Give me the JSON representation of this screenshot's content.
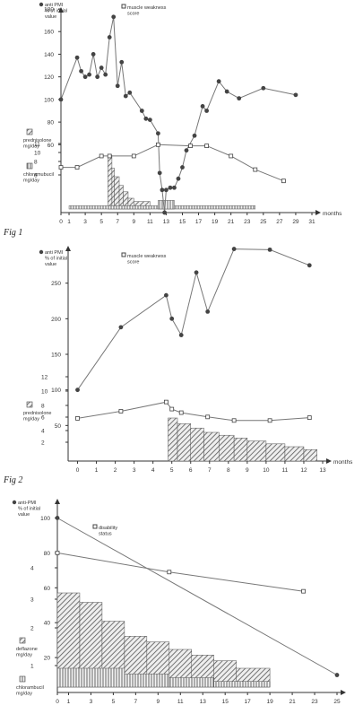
{
  "colors": {
    "ink": "#333333",
    "line": "#777777",
    "hatch": "#555555",
    "marker_fill": "#444444"
  },
  "chart_data": [
    {
      "type": "line",
      "caption": "Fig 1",
      "xlabel": "months",
      "xlim": [
        0,
        31
      ],
      "x_ticks": [
        0,
        1,
        3,
        5,
        7,
        9,
        11,
        13,
        15,
        17,
        19,
        21,
        23,
        25,
        27,
        29,
        31
      ],
      "y_left_label": "anti PMI\n% of initial\nvalue",
      "y_left_ticks": [
        60,
        80,
        100,
        120,
        140,
        160,
        180
      ],
      "ylim": [
        0,
        180
      ],
      "y_right_label": "muscle weakness\nscore",
      "y_right_ticks": [
        6,
        8,
        10,
        11
      ],
      "legend_bar_labels": [
        "prednisolone\nmg/day",
        "chloramubucil\nmg/day"
      ],
      "series": [
        {
          "name": "anti PMI",
          "marker": "filled-circle",
          "points": [
            [
              0,
              100
            ],
            [
              2,
              137
            ],
            [
              2.5,
              125
            ],
            [
              3,
              120
            ],
            [
              3.5,
              122
            ],
            [
              4,
              140
            ],
            [
              4.5,
              120
            ],
            [
              5,
              128
            ],
            [
              5.5,
              122
            ],
            [
              6,
              155
            ],
            [
              6.5,
              173
            ],
            [
              7,
              112
            ],
            [
              7.5,
              133
            ],
            [
              8,
              103
            ],
            [
              8.5,
              106
            ],
            [
              10,
              90
            ],
            [
              10.5,
              83
            ],
            [
              11,
              82
            ],
            [
              12,
              70
            ],
            [
              12.2,
              35
            ],
            [
              12.5,
              20
            ],
            [
              12.8,
              0
            ],
            [
              13,
              20
            ],
            [
              13.5,
              22
            ],
            [
              14,
              22
            ],
            [
              14.5,
              30
            ],
            [
              15,
              40
            ],
            [
              15.5,
              55
            ],
            [
              16.5,
              68
            ],
            [
              17.5,
              94
            ],
            [
              18,
              90
            ],
            [
              19.5,
              116
            ],
            [
              20.5,
              107
            ],
            [
              22,
              101
            ],
            [
              25,
              110
            ],
            [
              29,
              104
            ]
          ]
        },
        {
          "name": "muscle weakness score",
          "marker": "open-square",
          "points": [
            [
              0,
              40
            ],
            [
              2,
              40
            ],
            [
              5,
              50
            ],
            [
              6,
              50
            ],
            [
              9,
              50
            ],
            [
              12,
              60
            ],
            [
              16,
              59
            ],
            [
              18,
              59
            ],
            [
              21,
              50
            ],
            [
              24,
              38
            ],
            [
              27.5,
              28
            ]
          ]
        }
      ],
      "bars": [
        {
          "name": "prednisolone",
          "pattern": "cross-hatch",
          "segments": [
            [
              5.8,
              6.3,
              50
            ],
            [
              6.3,
              6.6,
              38
            ],
            [
              6.6,
              7.2,
              30
            ],
            [
              7.2,
              7.7,
              22
            ],
            [
              7.7,
              8.3,
              16
            ],
            [
              8.3,
              9,
              10
            ],
            [
              9,
              11,
              7
            ]
          ]
        },
        {
          "name": "chloramubucil",
          "pattern": "vertical",
          "segments": [
            [
              1,
              24,
              3
            ],
            [
              12,
              14,
              8
            ]
          ]
        }
      ]
    },
    {
      "type": "line",
      "caption": "Fig 2",
      "xlabel": "months",
      "xlim": [
        -0.5,
        13
      ],
      "x_ticks": [
        0,
        1,
        2,
        3,
        4,
        5,
        6,
        7,
        8,
        9,
        10,
        11,
        12,
        13
      ],
      "y_left_label": "anti PMI\n% of initial\nvalue",
      "y_left_ticks": [
        50,
        100,
        150,
        200,
        250
      ],
      "ylim": [
        0,
        300
      ],
      "y_right_label": "muscle weakness\nscore",
      "y_right_ticks": [
        2,
        4,
        6,
        8,
        10,
        12
      ],
      "legend_bar_labels": [
        "prednisolone\nmg/day"
      ],
      "series": [
        {
          "name": "anti PMI",
          "marker": "filled-circle",
          "points": [
            [
              0,
              100
            ],
            [
              2.3,
              188
            ],
            [
              4.7,
              233
            ],
            [
              5,
              200
            ],
            [
              5.5,
              177
            ],
            [
              6.3,
              265
            ],
            [
              6.9,
              210
            ],
            [
              8.3,
              298
            ],
            [
              10.2,
              297
            ],
            [
              12.3,
              275
            ]
          ]
        },
        {
          "name": "muscle weakness score",
          "marker": "open-square",
          "points": [
            [
              0,
              60
            ],
            [
              2.3,
              70
            ],
            [
              4.7,
              83
            ],
            [
              5,
              73
            ],
            [
              5.5,
              68
            ],
            [
              6.9,
              62
            ],
            [
              8.3,
              57
            ],
            [
              10.2,
              57
            ],
            [
              12.3,
              61
            ]
          ]
        }
      ],
      "bars": [
        {
          "name": "prednisolone",
          "pattern": "cross-hatch",
          "segments": [
            [
              4.8,
              5.3,
              60
            ],
            [
              5.3,
              6,
              52
            ],
            [
              6,
              6.7,
              46
            ],
            [
              6.7,
              7.5,
              40
            ],
            [
              7.5,
              8.3,
              36
            ],
            [
              8.3,
              9,
              32
            ],
            [
              9,
              10,
              28
            ],
            [
              10,
              11,
              24
            ],
            [
              11,
              12,
              20
            ],
            [
              12,
              12.7,
              16
            ]
          ]
        }
      ]
    },
    {
      "type": "line",
      "caption": "",
      "xlabel": "",
      "xlim": [
        0,
        25
      ],
      "x_ticks": [
        0,
        1,
        3,
        5,
        7,
        9,
        11,
        13,
        15,
        17,
        19,
        21,
        23,
        25
      ],
      "y_left_label": "anti-PMI\n% of initial\nvalue",
      "y_left_ticks": [
        20,
        40,
        60,
        80,
        100
      ],
      "ylim": [
        0,
        110
      ],
      "y_right_label": "disability\nstatus",
      "y_right_ticks": [
        1,
        2,
        3,
        4
      ],
      "legend_bar_labels": [
        "deflazone\nmg/day",
        "chlorambucil\nmg/day"
      ],
      "series": [
        {
          "name": "anti-PMI",
          "marker": "filled-circle",
          "points": [
            [
              0,
              100
            ],
            [
              25,
              10
            ]
          ]
        },
        {
          "name": "disability status",
          "marker": "open-square",
          "points": [
            [
              0,
              80
            ],
            [
              10,
              69
            ],
            [
              22,
              58
            ]
          ]
        }
      ],
      "bars": [
        {
          "name": "deflazone",
          "pattern": "cross-hatch",
          "segments": [
            [
              0,
              2,
              50
            ],
            [
              2,
              4,
              45
            ],
            [
              4,
              6,
              35
            ],
            [
              6,
              8,
              27
            ],
            [
              8,
              10,
              24
            ],
            [
              10,
              12,
              20
            ],
            [
              12,
              14,
              17
            ],
            [
              14,
              16,
              14
            ],
            [
              16,
              19,
              10
            ]
          ]
        },
        {
          "name": "chlorambucil",
          "pattern": "vertical",
          "segments": [
            [
              0,
              6,
              10
            ],
            [
              6,
              10,
              7
            ],
            [
              10,
              14,
              5
            ],
            [
              14,
              19,
              3
            ]
          ]
        }
      ]
    }
  ]
}
